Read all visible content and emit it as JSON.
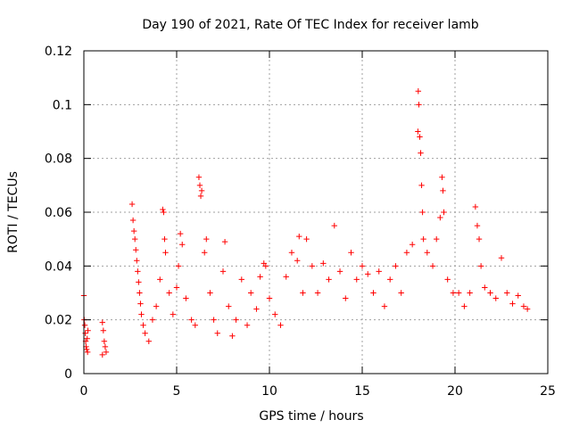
{
  "chart_data": {
    "type": "scatter",
    "title": "Day 190 of 2021, Rate Of TEC Index for receiver lamb",
    "xlabel": "GPS time / hours",
    "ylabel": "ROTI / TECUs",
    "xlim": [
      0,
      25
    ],
    "ylim": [
      0,
      0.12
    ],
    "x_ticks": [
      0,
      5,
      10,
      15,
      20,
      25
    ],
    "x_tick_labels": [
      "0",
      "5",
      "10",
      "15",
      "20",
      "25"
    ],
    "y_ticks": [
      0,
      0.02,
      0.04,
      0.06,
      0.08,
      0.1,
      0.12
    ],
    "y_tick_labels": [
      "0",
      "0.02",
      "0.04",
      "0.06",
      "0.08",
      "0.1",
      "0.12"
    ],
    "grid": true,
    "marker": "plus",
    "color": "#ff0000",
    "series": [
      {
        "points": [
          [
            0.0,
            0.029
          ],
          [
            0.02,
            0.02
          ],
          [
            0.05,
            0.018
          ],
          [
            0.08,
            0.015
          ],
          [
            0.1,
            0.012
          ],
          [
            0.12,
            0.01
          ],
          [
            0.15,
            0.009
          ],
          [
            0.18,
            0.013
          ],
          [
            0.2,
            0.008
          ],
          [
            0.22,
            0.016
          ],
          [
            1.0,
            0.019
          ],
          [
            1.05,
            0.016
          ],
          [
            1.1,
            0.012
          ],
          [
            1.15,
            0.01
          ],
          [
            1.2,
            0.008
          ],
          [
            1.0,
            0.007
          ],
          [
            2.6,
            0.063
          ],
          [
            2.65,
            0.057
          ],
          [
            2.7,
            0.053
          ],
          [
            2.75,
            0.05
          ],
          [
            2.8,
            0.046
          ],
          [
            2.85,
            0.042
          ],
          [
            2.9,
            0.038
          ],
          [
            2.95,
            0.034
          ],
          [
            3.0,
            0.03
          ],
          [
            3.05,
            0.026
          ],
          [
            3.1,
            0.022
          ],
          [
            3.2,
            0.018
          ],
          [
            3.3,
            0.015
          ],
          [
            3.5,
            0.012
          ],
          [
            3.7,
            0.02
          ],
          [
            3.9,
            0.025
          ],
          [
            4.1,
            0.035
          ],
          [
            4.25,
            0.061
          ],
          [
            4.3,
            0.06
          ],
          [
            4.35,
            0.05
          ],
          [
            4.4,
            0.045
          ],
          [
            4.6,
            0.03
          ],
          [
            4.8,
            0.022
          ],
          [
            5.0,
            0.032
          ],
          [
            5.1,
            0.04
          ],
          [
            5.2,
            0.052
          ],
          [
            5.3,
            0.048
          ],
          [
            5.5,
            0.028
          ],
          [
            5.8,
            0.02
          ],
          [
            6.0,
            0.018
          ],
          [
            6.2,
            0.073
          ],
          [
            6.25,
            0.07
          ],
          [
            6.3,
            0.066
          ],
          [
            6.35,
            0.068
          ],
          [
            6.5,
            0.045
          ],
          [
            6.6,
            0.05
          ],
          [
            6.8,
            0.03
          ],
          [
            7.0,
            0.02
          ],
          [
            7.2,
            0.015
          ],
          [
            7.5,
            0.038
          ],
          [
            7.6,
            0.049
          ],
          [
            7.8,
            0.025
          ],
          [
            8.0,
            0.014
          ],
          [
            8.2,
            0.02
          ],
          [
            8.5,
            0.035
          ],
          [
            8.8,
            0.018
          ],
          [
            9.0,
            0.03
          ],
          [
            9.3,
            0.024
          ],
          [
            9.5,
            0.036
          ],
          [
            9.7,
            0.041
          ],
          [
            9.8,
            0.04
          ],
          [
            10.0,
            0.028
          ],
          [
            10.3,
            0.022
          ],
          [
            10.6,
            0.018
          ],
          [
            10.9,
            0.036
          ],
          [
            11.2,
            0.045
          ],
          [
            11.5,
            0.042
          ],
          [
            11.6,
            0.051
          ],
          [
            11.8,
            0.03
          ],
          [
            12.0,
            0.05
          ],
          [
            12.3,
            0.04
          ],
          [
            12.6,
            0.03
          ],
          [
            12.9,
            0.041
          ],
          [
            13.2,
            0.035
          ],
          [
            13.5,
            0.055
          ],
          [
            13.8,
            0.038
          ],
          [
            14.1,
            0.028
          ],
          [
            14.4,
            0.045
          ],
          [
            14.7,
            0.035
          ],
          [
            15.0,
            0.04
          ],
          [
            15.3,
            0.037
          ],
          [
            15.6,
            0.03
          ],
          [
            15.9,
            0.038
          ],
          [
            16.2,
            0.025
          ],
          [
            16.5,
            0.035
          ],
          [
            16.8,
            0.04
          ],
          [
            17.1,
            0.03
          ],
          [
            17.4,
            0.045
          ],
          [
            17.7,
            0.048
          ],
          [
            18.0,
            0.09
          ],
          [
            18.02,
            0.105
          ],
          [
            18.05,
            0.1
          ],
          [
            18.1,
            0.088
          ],
          [
            18.15,
            0.082
          ],
          [
            18.2,
            0.07
          ],
          [
            18.25,
            0.06
          ],
          [
            18.3,
            0.05
          ],
          [
            18.5,
            0.045
          ],
          [
            18.8,
            0.04
          ],
          [
            19.0,
            0.05
          ],
          [
            19.2,
            0.058
          ],
          [
            19.3,
            0.073
          ],
          [
            19.35,
            0.068
          ],
          [
            19.4,
            0.06
          ],
          [
            19.6,
            0.035
          ],
          [
            19.9,
            0.03
          ],
          [
            20.2,
            0.03
          ],
          [
            20.5,
            0.025
          ],
          [
            20.8,
            0.03
          ],
          [
            21.1,
            0.062
          ],
          [
            21.2,
            0.055
          ],
          [
            21.3,
            0.05
          ],
          [
            21.4,
            0.04
          ],
          [
            21.6,
            0.032
          ],
          [
            21.9,
            0.03
          ],
          [
            22.2,
            0.028
          ],
          [
            22.5,
            0.043
          ],
          [
            22.8,
            0.03
          ],
          [
            23.1,
            0.026
          ],
          [
            23.4,
            0.029
          ],
          [
            23.7,
            0.025
          ],
          [
            23.9,
            0.024
          ]
        ]
      }
    ]
  }
}
